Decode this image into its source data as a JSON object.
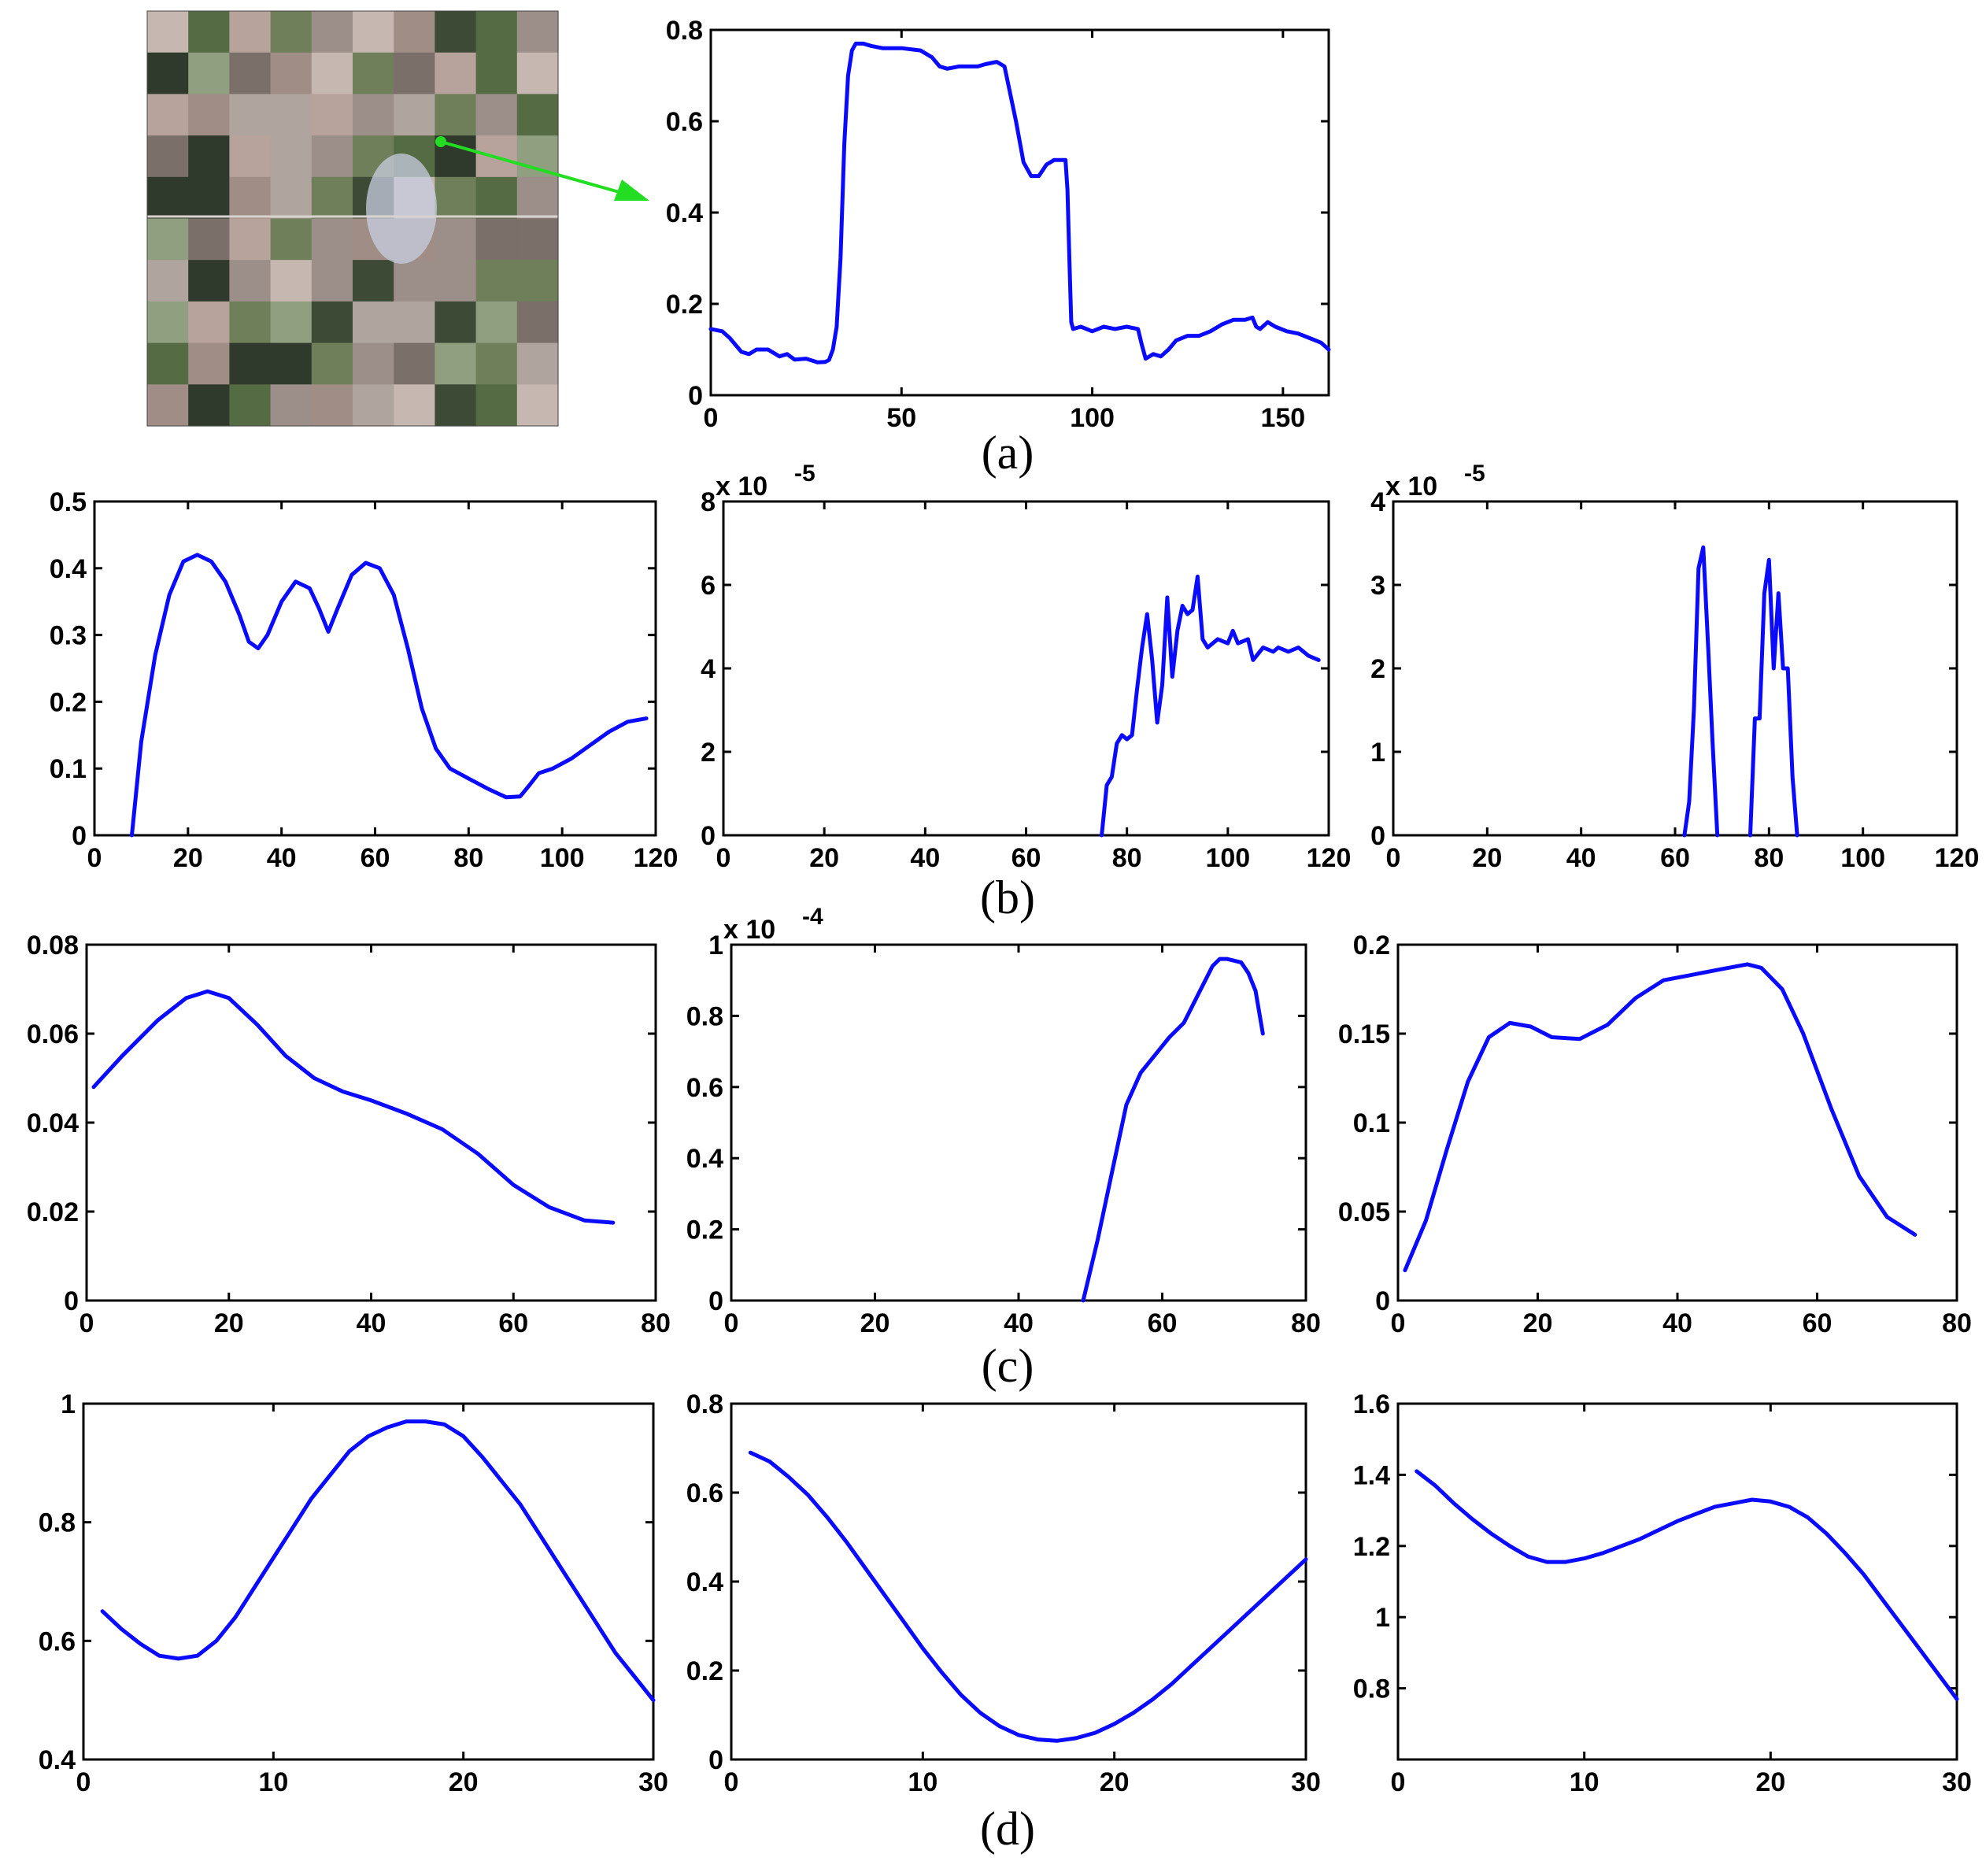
{
  "colors": {
    "series": "#0a0aff",
    "arrow": "#22dd22",
    "axis": "#000000"
  },
  "thumbnail": {
    "icon": "satellite-image",
    "description_only": true
  },
  "captions": {
    "a": "(a)",
    "b": "(b)",
    "c": "(c)",
    "d": "(d)"
  },
  "chart_data": [
    {
      "id": "a",
      "type": "line",
      "xlim": [
        0,
        162
      ],
      "ylim": [
        0,
        0.8
      ],
      "xticks": [
        0,
        50,
        100,
        150
      ],
      "yticks": [
        0,
        0.2,
        0.4,
        0.6,
        0.8
      ],
      "xtick_labels": [
        "0",
        "50",
        "100",
        "150"
      ],
      "ytick_labels": [
        "0",
        "0.2",
        "0.4",
        "0.6",
        "0.8"
      ],
      "exponent_label": "",
      "series": [
        {
          "x": [
            0,
            3,
            5,
            8,
            10,
            12,
            15,
            18,
            20,
            22,
            25,
            28,
            30,
            31,
            32,
            33,
            34,
            35,
            36,
            37,
            38,
            40,
            42,
            45,
            50,
            55,
            58,
            60,
            62,
            65,
            68,
            70,
            72,
            75,
            77,
            78,
            80,
            82,
            84,
            86,
            88,
            90,
            91,
            93,
            93.5,
            94,
            94.5,
            95,
            97,
            100,
            103,
            106,
            109,
            112,
            113,
            114,
            116,
            118,
            120,
            122,
            125,
            128,
            131,
            134,
            137,
            140,
            142,
            143,
            144,
            146,
            148,
            151,
            154,
            157,
            160,
            162
          ],
          "y": [
            0.145,
            0.14,
            0.125,
            0.095,
            0.09,
            0.1,
            0.1,
            0.085,
            0.09,
            0.078,
            0.08,
            0.072,
            0.073,
            0.077,
            0.1,
            0.15,
            0.3,
            0.55,
            0.7,
            0.755,
            0.77,
            0.77,
            0.765,
            0.76,
            0.76,
            0.755,
            0.74,
            0.72,
            0.715,
            0.72,
            0.72,
            0.72,
            0.725,
            0.73,
            0.72,
            0.68,
            0.6,
            0.51,
            0.48,
            0.48,
            0.505,
            0.515,
            0.515,
            0.515,
            0.45,
            0.3,
            0.16,
            0.145,
            0.15,
            0.14,
            0.15,
            0.145,
            0.15,
            0.145,
            0.11,
            0.08,
            0.09,
            0.085,
            0.1,
            0.12,
            0.13,
            0.13,
            0.14,
            0.155,
            0.165,
            0.165,
            0.17,
            0.15,
            0.145,
            0.16,
            0.15,
            0.14,
            0.135,
            0.125,
            0.115,
            0.1
          ]
        }
      ]
    },
    {
      "id": "b1",
      "type": "line",
      "xlim": [
        0,
        120
      ],
      "ylim": [
        0,
        0.5
      ],
      "xticks": [
        0,
        20,
        40,
        60,
        80,
        100,
        120
      ],
      "yticks": [
        0,
        0.1,
        0.2,
        0.3,
        0.4,
        0.5
      ],
      "xtick_labels": [
        "0",
        "20",
        "40",
        "60",
        "80",
        "100",
        "120"
      ],
      "ytick_labels": [
        "0",
        "0.1",
        "0.2",
        "0.3",
        "0.4",
        "0.5"
      ],
      "exponent_label": "",
      "series": [
        {
          "x": [
            8,
            10,
            13,
            16,
            19,
            22,
            25,
            28,
            31,
            33,
            35,
            37,
            40,
            43,
            46,
            48,
            50,
            52,
            55,
            58,
            61,
            64,
            67,
            70,
            73,
            76,
            80,
            84,
            88,
            91,
            93,
            95,
            98,
            102,
            106,
            110,
            114,
            118
          ],
          "y": [
            0,
            0.14,
            0.27,
            0.36,
            0.41,
            0.42,
            0.41,
            0.38,
            0.33,
            0.29,
            0.28,
            0.3,
            0.35,
            0.38,
            0.37,
            0.34,
            0.305,
            0.34,
            0.39,
            0.408,
            0.4,
            0.36,
            0.28,
            0.19,
            0.13,
            0.1,
            0.085,
            0.07,
            0.057,
            0.058,
            0.075,
            0.093,
            0.1,
            0.115,
            0.135,
            0.155,
            0.17,
            0.175
          ]
        }
      ]
    },
    {
      "id": "b2",
      "type": "line",
      "xlim": [
        0,
        120
      ],
      "ylim": [
        0,
        8
      ],
      "xticks": [
        0,
        20,
        40,
        60,
        80,
        100,
        120
      ],
      "yticks": [
        0,
        2,
        4,
        6,
        8
      ],
      "xtick_labels": [
        "0",
        "20",
        "40",
        "60",
        "80",
        "100",
        "120"
      ],
      "ytick_labels": [
        "0",
        "2",
        "4",
        "6",
        "8"
      ],
      "exponent_label": "x 10",
      "exponent_power": "-5",
      "series": [
        {
          "x": [
            75,
            76,
            77,
            78,
            79,
            80,
            81,
            82,
            83,
            84,
            85,
            86,
            87,
            88,
            89,
            90,
            91,
            92,
            93,
            94,
            95,
            96,
            98,
            100,
            101,
            102,
            104,
            105,
            107,
            109,
            110,
            112,
            114,
            116,
            118
          ],
          "y": [
            0,
            1.2,
            1.4,
            2.2,
            2.4,
            2.3,
            2.4,
            3.5,
            4.5,
            5.3,
            4.2,
            2.7,
            3.6,
            5.7,
            3.8,
            4.9,
            5.5,
            5.3,
            5.4,
            6.2,
            4.7,
            4.5,
            4.7,
            4.6,
            4.9,
            4.6,
            4.7,
            4.2,
            4.5,
            4.4,
            4.5,
            4.4,
            4.5,
            4.3,
            4.2
          ]
        }
      ]
    },
    {
      "id": "b3",
      "type": "line",
      "xlim": [
        0,
        120
      ],
      "ylim": [
        0,
        4
      ],
      "xticks": [
        0,
        20,
        40,
        60,
        80,
        100,
        120
      ],
      "yticks": [
        0,
        1,
        2,
        3,
        4
      ],
      "xtick_labels": [
        "0",
        "20",
        "40",
        "60",
        "80",
        "100",
        "120"
      ],
      "ytick_labels": [
        "0",
        "1",
        "2",
        "3",
        "4"
      ],
      "exponent_label": "x 10",
      "exponent_power": "-5",
      "series": [
        {
          "x": [
            62,
            63,
            64,
            65,
            66,
            67,
            68,
            69,
            70,
            76,
            77,
            78,
            79,
            80,
            81,
            82,
            83,
            84,
            85,
            86
          ],
          "y": [
            0,
            0.4,
            1.5,
            3.2,
            3.45,
            2.3,
            1.1,
            0,
            null,
            0,
            1.4,
            1.4,
            2.9,
            3.3,
            2.0,
            2.9,
            2.0,
            2.0,
            0.7,
            0
          ]
        }
      ]
    },
    {
      "id": "c1",
      "type": "line",
      "xlim": [
        0,
        80
      ],
      "ylim": [
        0,
        0.08
      ],
      "xticks": [
        0,
        20,
        40,
        60,
        80
      ],
      "yticks": [
        0,
        0.02,
        0.04,
        0.06,
        0.08
      ],
      "xtick_labels": [
        "0",
        "20",
        "40",
        "60",
        "80"
      ],
      "ytick_labels": [
        "0",
        "0.02",
        "0.04",
        "0.06",
        "0.08"
      ],
      "exponent_label": "",
      "series": [
        {
          "x": [
            1,
            5,
            10,
            14,
            17,
            20,
            24,
            28,
            32,
            36,
            40,
            45,
            50,
            55,
            60,
            65,
            70,
            74
          ],
          "y": [
            0.048,
            0.055,
            0.063,
            0.068,
            0.0695,
            0.068,
            0.062,
            0.055,
            0.05,
            0.047,
            0.045,
            0.042,
            0.0385,
            0.033,
            0.026,
            0.021,
            0.018,
            0.0175
          ]
        }
      ]
    },
    {
      "id": "c2",
      "type": "line",
      "xlim": [
        0,
        80
      ],
      "ylim": [
        0,
        1
      ],
      "xticks": [
        0,
        20,
        40,
        60,
        80
      ],
      "yticks": [
        0,
        0.2,
        0.4,
        0.6,
        0.8,
        1
      ],
      "xtick_labels": [
        "0",
        "20",
        "40",
        "60",
        "80"
      ],
      "ytick_labels": [
        "0",
        "0.2",
        "0.4",
        "0.6",
        "0.8",
        "1"
      ],
      "exponent_label": "x 10",
      "exponent_power": "-4",
      "series": [
        {
          "x": [
            49,
            51,
            53,
            55,
            57,
            59,
            61,
            63,
            65,
            67,
            68,
            69,
            70,
            71,
            72,
            73,
            74
          ],
          "y": [
            0,
            0.17,
            0.36,
            0.55,
            0.64,
            0.69,
            0.74,
            0.78,
            0.86,
            0.94,
            0.96,
            0.96,
            0.955,
            0.95,
            0.92,
            0.87,
            0.75
          ]
        }
      ]
    },
    {
      "id": "c3",
      "type": "line",
      "xlim": [
        0,
        80
      ],
      "ylim": [
        0,
        0.2
      ],
      "xticks": [
        0,
        20,
        40,
        60,
        80
      ],
      "yticks": [
        0,
        0.05,
        0.1,
        0.15,
        0.2
      ],
      "xtick_labels": [
        "0",
        "20",
        "40",
        "60",
        "80"
      ],
      "ytick_labels": [
        "0",
        "0.05",
        "0.1",
        "0.15",
        "0.2"
      ],
      "exponent_label": "",
      "series": [
        {
          "x": [
            1,
            4,
            7,
            10,
            13,
            16,
            19,
            22,
            26,
            30,
            34,
            38,
            42,
            46,
            50,
            52,
            55,
            58,
            62,
            66,
            70,
            74
          ],
          "y": [
            0.017,
            0.045,
            0.085,
            0.123,
            0.148,
            0.156,
            0.154,
            0.148,
            0.147,
            0.155,
            0.17,
            0.18,
            0.183,
            0.186,
            0.189,
            0.187,
            0.175,
            0.15,
            0.108,
            0.07,
            0.047,
            0.037
          ]
        }
      ]
    },
    {
      "id": "d1",
      "type": "line",
      "xlim": [
        0,
        30
      ],
      "ylim": [
        0.4,
        1
      ],
      "xticks": [
        0,
        10,
        20,
        30
      ],
      "yticks": [
        0.4,
        0.6,
        0.8,
        1
      ],
      "xtick_labels": [
        "0",
        "10",
        "20",
        "30"
      ],
      "ytick_labels": [
        "0.4",
        "0.6",
        "0.8",
        "1"
      ],
      "exponent_label": "",
      "series": [
        {
          "x": [
            1,
            2,
            3,
            4,
            5,
            6,
            7,
            8,
            9,
            10,
            11,
            12,
            13,
            14,
            15,
            16,
            17,
            18,
            19,
            20,
            21,
            22,
            23,
            24,
            25,
            26,
            27,
            28,
            29,
            30
          ],
          "y": [
            0.65,
            0.62,
            0.595,
            0.575,
            0.57,
            0.575,
            0.6,
            0.64,
            0.69,
            0.74,
            0.79,
            0.84,
            0.88,
            0.92,
            0.945,
            0.96,
            0.97,
            0.97,
            0.965,
            0.945,
            0.91,
            0.87,
            0.83,
            0.78,
            0.73,
            0.68,
            0.63,
            0.58,
            0.54,
            0.5
          ]
        }
      ]
    },
    {
      "id": "d2",
      "type": "line",
      "xlim": [
        0,
        30
      ],
      "ylim": [
        0,
        0.8
      ],
      "xticks": [
        0,
        10,
        20,
        30
      ],
      "yticks": [
        0,
        0.2,
        0.4,
        0.6,
        0.8
      ],
      "xtick_labels": [
        "0",
        "10",
        "20",
        "30"
      ],
      "ytick_labels": [
        "0",
        "0.2",
        "0.4",
        "0.6",
        "0.8"
      ],
      "exponent_label": "",
      "series": [
        {
          "x": [
            1,
            2,
            3,
            4,
            5,
            6,
            7,
            8,
            9,
            10,
            11,
            12,
            13,
            14,
            15,
            16,
            17,
            18,
            19,
            20,
            21,
            22,
            23,
            24,
            25,
            26,
            27,
            28,
            29,
            30
          ],
          "y": [
            0.69,
            0.67,
            0.635,
            0.595,
            0.545,
            0.49,
            0.43,
            0.37,
            0.31,
            0.25,
            0.195,
            0.145,
            0.105,
            0.075,
            0.055,
            0.045,
            0.042,
            0.048,
            0.06,
            0.08,
            0.105,
            0.135,
            0.17,
            0.21,
            0.25,
            0.29,
            0.33,
            0.37,
            0.41,
            0.45
          ]
        }
      ]
    },
    {
      "id": "d3",
      "type": "line",
      "xlim": [
        0,
        30
      ],
      "ylim": [
        0.6,
        1.6
      ],
      "xticks": [
        0,
        10,
        20,
        30
      ],
      "yticks": [
        0.8,
        1,
        1.2,
        1.4,
        1.6
      ],
      "xtick_labels": [
        "0",
        "10",
        "20",
        "30"
      ],
      "ytick_labels": [
        "0.8",
        "1",
        "1.2",
        "1.4",
        "1.6"
      ],
      "exponent_label": "",
      "series": [
        {
          "x": [
            1,
            2,
            3,
            4,
            5,
            6,
            7,
            8,
            9,
            10,
            11,
            12,
            13,
            14,
            15,
            16,
            17,
            18,
            19,
            20,
            21,
            22,
            23,
            24,
            25,
            26,
            27,
            28,
            29,
            30
          ],
          "y": [
            1.41,
            1.37,
            1.32,
            1.275,
            1.235,
            1.2,
            1.17,
            1.155,
            1.155,
            1.165,
            1.18,
            1.2,
            1.22,
            1.245,
            1.27,
            1.29,
            1.31,
            1.32,
            1.33,
            1.325,
            1.31,
            1.28,
            1.235,
            1.18,
            1.12,
            1.05,
            0.98,
            0.91,
            0.84,
            0.77
          ]
        }
      ]
    }
  ]
}
